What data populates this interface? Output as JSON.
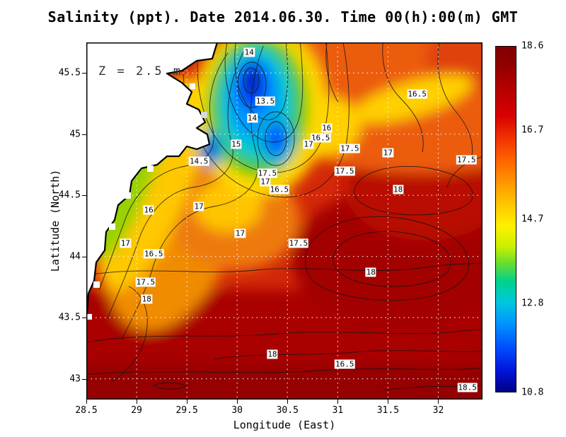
{
  "chart_data": {
    "type": "heatmap",
    "subtype": "filled_contour_map",
    "title": "Salinity (ppt). Date 2014.06.30. Time 00(h):00(m) GMT",
    "variable": "Salinity",
    "units": "ppt",
    "date": "2014.06.30",
    "time": "00(h):00(m) GMT",
    "annotation": "Z = 2.5 m",
    "xlabel": "Longitude (East)",
    "ylabel": "Latitude (North)",
    "xlim": [
      28.5,
      32.44
    ],
    "ylim": [
      42.83,
      45.75
    ],
    "x_ticks": [
      28.5,
      29,
      29.5,
      30,
      30.5,
      31,
      31.5,
      32
    ],
    "x_tick_labels": [
      "28.5",
      "29",
      "29.5",
      "30",
      "30.5",
      "31",
      "31.5",
      "32"
    ],
    "y_ticks": [
      43,
      43.5,
      44,
      44.5,
      45,
      45.5
    ],
    "y_tick_labels": [
      "43",
      "43.5",
      "44",
      "44.5",
      "45",
      "45.5"
    ],
    "grid": true,
    "colorbar": {
      "min": 10.8,
      "max": 18.6,
      "tick_values": [
        18.6,
        16.7,
        14.7,
        12.8,
        10.8
      ],
      "tick_labels": [
        "18.6",
        "16.7",
        "14.7",
        "12.8",
        "10.8"
      ],
      "gradient": [
        {
          "o": 0.0,
          "c": "#800000"
        },
        {
          "o": 0.05,
          "c": "#8f0000"
        },
        {
          "o": 0.12,
          "c": "#b40000"
        },
        {
          "o": 0.2,
          "c": "#d90000"
        },
        {
          "o": 0.27,
          "c": "#f33600"
        },
        {
          "o": 0.33,
          "c": "#ff6400"
        },
        {
          "o": 0.4,
          "c": "#ff9b00"
        },
        {
          "o": 0.46,
          "c": "#ffc800"
        },
        {
          "o": 0.52,
          "c": "#fff000"
        },
        {
          "o": 0.58,
          "c": "#c8f000"
        },
        {
          "o": 0.63,
          "c": "#64dc32"
        },
        {
          "o": 0.68,
          "c": "#00d28c"
        },
        {
          "o": 0.74,
          "c": "#00c8dc"
        },
        {
          "o": 0.8,
          "c": "#0096ff"
        },
        {
          "o": 0.87,
          "c": "#0050ff"
        },
        {
          "o": 0.94,
          "c": "#0014dc"
        },
        {
          "o": 1.0,
          "c": "#000082"
        }
      ]
    },
    "contour_labels": [
      {
        "value": "14",
        "lon": 30.12,
        "lat": 45.67
      },
      {
        "value": "13.5",
        "lon": 30.28,
        "lat": 45.27
      },
      {
        "value": "16.5",
        "lon": 31.79,
        "lat": 45.33
      },
      {
        "value": "14",
        "lon": 30.15,
        "lat": 45.13
      },
      {
        "value": "16",
        "lon": 30.89,
        "lat": 45.05
      },
      {
        "value": "16.5",
        "lon": 30.83,
        "lat": 44.97
      },
      {
        "value": "17",
        "lon": 30.71,
        "lat": 44.92
      },
      {
        "value": "17.5",
        "lon": 31.12,
        "lat": 44.88
      },
      {
        "value": "17",
        "lon": 31.5,
        "lat": 44.85
      },
      {
        "value": "15",
        "lon": 29.99,
        "lat": 44.92
      },
      {
        "value": "14.5",
        "lon": 29.62,
        "lat": 44.78
      },
      {
        "value": "17.5",
        "lon": 32.28,
        "lat": 44.79
      },
      {
        "value": "17.5",
        "lon": 30.3,
        "lat": 44.68
      },
      {
        "value": "17",
        "lon": 30.28,
        "lat": 44.61
      },
      {
        "value": "16.5",
        "lon": 30.42,
        "lat": 44.55
      },
      {
        "value": "17.5",
        "lon": 31.07,
        "lat": 44.7
      },
      {
        "value": "18",
        "lon": 31.6,
        "lat": 44.55
      },
      {
        "value": "16",
        "lon": 29.12,
        "lat": 44.38
      },
      {
        "value": "17",
        "lon": 29.62,
        "lat": 44.41
      },
      {
        "value": "17",
        "lon": 30.03,
        "lat": 44.19
      },
      {
        "value": "17.5",
        "lon": 30.61,
        "lat": 44.11
      },
      {
        "value": "17",
        "lon": 28.89,
        "lat": 44.11
      },
      {
        "value": "16.5",
        "lon": 29.17,
        "lat": 44.02
      },
      {
        "value": "18",
        "lon": 31.33,
        "lat": 43.87
      },
      {
        "value": "17.5",
        "lon": 29.09,
        "lat": 43.79
      },
      {
        "value": "18",
        "lon": 29.1,
        "lat": 43.65
      },
      {
        "value": "18",
        "lon": 30.35,
        "lat": 43.2
      },
      {
        "value": "16.5",
        "lon": 31.07,
        "lat": 43.12
      },
      {
        "value": "18.5",
        "lon": 32.29,
        "lat": 42.93
      }
    ]
  }
}
